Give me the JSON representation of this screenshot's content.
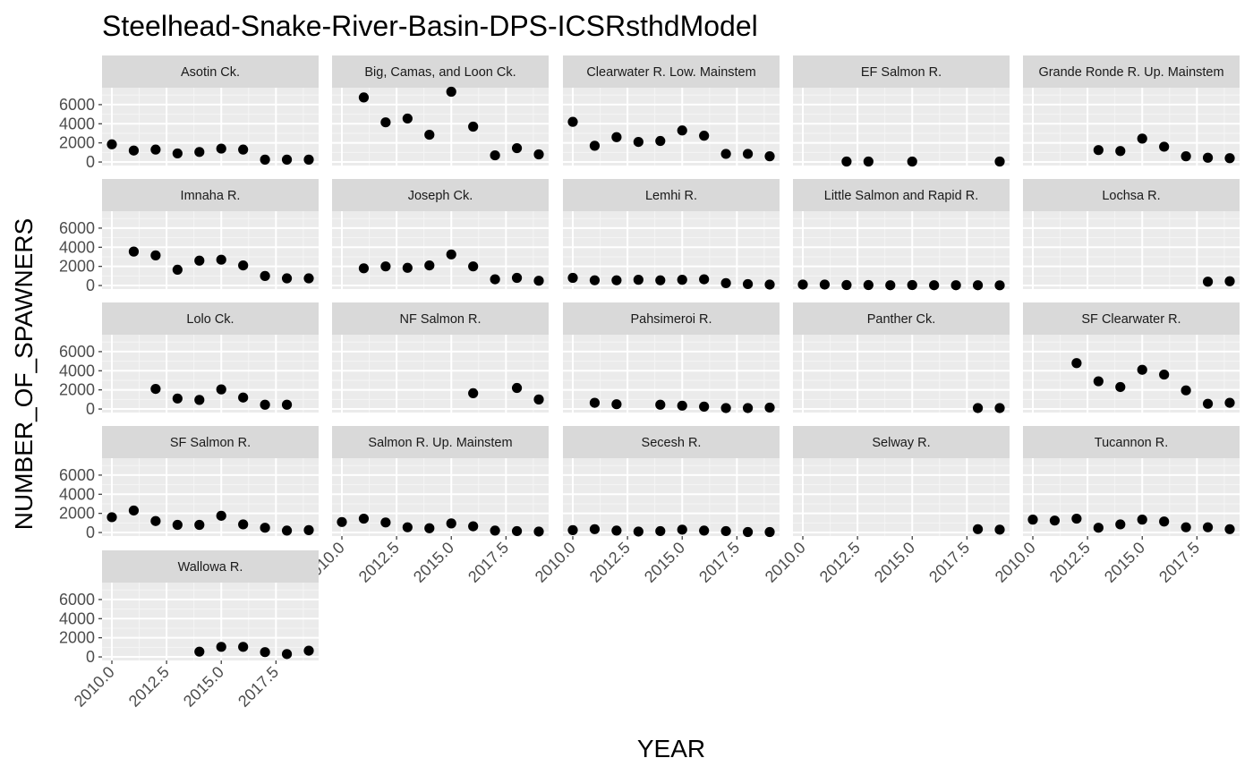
{
  "chart_data": {
    "type": "scatter",
    "title": "Steelhead-Snake-River-Basin-DPS-ICSRsthdModel",
    "xlabel": "YEAR",
    "ylabel": "NUMBER_OF_SPAWNERS",
    "xlim": [
      2009.55,
      2019.45
    ],
    "ylim": [
      -370,
      7770
    ],
    "x_ticks": [
      2010.0,
      2012.5,
      2015.0,
      2017.5
    ],
    "x_tick_labels": [
      "2010.0",
      "2012.5",
      "2015.0",
      "2017.5"
    ],
    "y_ticks": [
      0,
      2000,
      4000,
      6000
    ],
    "y_tick_labels": [
      "0",
      "2000",
      "4000",
      "6000"
    ],
    "grid": true,
    "point_color": "#000000",
    "panel_background": "#ebebeb",
    "strip_background": "#d9d9d9",
    "panels": [
      {
        "name": "Asotin Ck.",
        "x": [
          2010,
          2011,
          2012,
          2013,
          2014,
          2015,
          2016,
          2017,
          2018,
          2019
        ],
        "y": [
          1850,
          1200,
          1300,
          900,
          1050,
          1400,
          1300,
          250,
          250,
          250
        ]
      },
      {
        "name": "Big, Camas, and Loon Ck.",
        "x": [
          2011,
          2012,
          2013,
          2014,
          2015,
          2016,
          2017,
          2018,
          2019
        ],
        "y": [
          6750,
          4150,
          4550,
          2850,
          7350,
          3700,
          700,
          1450,
          800
        ]
      },
      {
        "name": "Clearwater R. Low. Mainstem",
        "x": [
          2010,
          2011,
          2012,
          2013,
          2014,
          2015,
          2016,
          2017,
          2018,
          2019
        ],
        "y": [
          4200,
          1700,
          2600,
          2100,
          2200,
          3300,
          2750,
          850,
          850,
          600
        ]
      },
      {
        "name": "EF Salmon R.",
        "x": [
          2012,
          2013,
          2015,
          2019
        ],
        "y": [
          50,
          50,
          50,
          50
        ]
      },
      {
        "name": "Grande Ronde R. Up. Mainstem",
        "x": [
          2013,
          2014,
          2015,
          2016,
          2017,
          2018,
          2019
        ],
        "y": [
          1250,
          1150,
          2450,
          1600,
          600,
          450,
          400
        ]
      },
      {
        "name": "Imnaha R.",
        "x": [
          2011,
          2012,
          2013,
          2014,
          2015,
          2016,
          2017,
          2018,
          2019
        ],
        "y": [
          3550,
          3150,
          1650,
          2600,
          2700,
          2100,
          1000,
          750,
          750
        ]
      },
      {
        "name": "Joseph Ck.",
        "x": [
          2011,
          2012,
          2013,
          2014,
          2015,
          2016,
          2017,
          2018,
          2019
        ],
        "y": [
          1800,
          2000,
          1850,
          2100,
          3250,
          2000,
          650,
          800,
          500
        ]
      },
      {
        "name": "Lemhi R.",
        "x": [
          2010,
          2011,
          2012,
          2013,
          2014,
          2015,
          2016,
          2017,
          2018,
          2019
        ],
        "y": [
          800,
          550,
          550,
          600,
          550,
          600,
          650,
          250,
          150,
          100
        ]
      },
      {
        "name": "Little Salmon and Rapid R.",
        "x": [
          2010,
          2011,
          2012,
          2013,
          2014,
          2015,
          2016,
          2017,
          2018,
          2019
        ],
        "y": [
          100,
          100,
          50,
          50,
          30,
          50,
          30,
          30,
          30,
          20
        ]
      },
      {
        "name": "Lochsa R.",
        "x": [
          2018,
          2019
        ],
        "y": [
          400,
          450
        ]
      },
      {
        "name": "Lolo Ck.",
        "x": [
          2012,
          2013,
          2014,
          2015,
          2016,
          2017,
          2018
        ],
        "y": [
          2100,
          1100,
          950,
          2050,
          1200,
          450,
          450
        ]
      },
      {
        "name": "NF Salmon R.",
        "x": [
          2016,
          2018,
          2019
        ],
        "y": [
          1650,
          2200,
          1000
        ]
      },
      {
        "name": "Pahsimeroi R.",
        "x": [
          2011,
          2012,
          2014,
          2015,
          2016,
          2017,
          2018,
          2019
        ],
        "y": [
          650,
          500,
          450,
          350,
          250,
          100,
          100,
          150
        ]
      },
      {
        "name": "Panther Ck.",
        "x": [
          2018,
          2019
        ],
        "y": [
          100,
          100
        ]
      },
      {
        "name": "SF Clearwater R.",
        "x": [
          2012,
          2013,
          2014,
          2015,
          2016,
          2017,
          2018,
          2019
        ],
        "y": [
          4800,
          2900,
          2300,
          4100,
          3600,
          1950,
          550,
          650
        ]
      },
      {
        "name": "SF Salmon R.",
        "x": [
          2010,
          2011,
          2012,
          2013,
          2014,
          2015,
          2016,
          2017,
          2018,
          2019
        ],
        "y": [
          1600,
          2300,
          1200,
          800,
          800,
          1750,
          850,
          500,
          200,
          250
        ]
      },
      {
        "name": "Salmon R. Up. Mainstem",
        "x": [
          2010,
          2011,
          2012,
          2013,
          2014,
          2015,
          2016,
          2017,
          2018,
          2019
        ],
        "y": [
          1100,
          1450,
          1050,
          550,
          450,
          950,
          650,
          200,
          150,
          100
        ]
      },
      {
        "name": "Secesh R.",
        "x": [
          2010,
          2011,
          2012,
          2013,
          2014,
          2015,
          2016,
          2017,
          2018,
          2019
        ],
        "y": [
          250,
          350,
          200,
          100,
          150,
          300,
          200,
          150,
          50,
          50
        ]
      },
      {
        "name": "Selway R.",
        "x": [
          2018,
          2019
        ],
        "y": [
          350,
          300
        ]
      },
      {
        "name": "Tucannon R.",
        "x": [
          2010,
          2011,
          2012,
          2013,
          2014,
          2015,
          2016,
          2017,
          2018,
          2019
        ],
        "y": [
          1350,
          1250,
          1450,
          500,
          850,
          1350,
          1150,
          550,
          550,
          350
        ]
      },
      {
        "name": "Wallowa R.",
        "x": [
          2014,
          2015,
          2016,
          2017,
          2018,
          2019
        ],
        "y": [
          550,
          1050,
          1050,
          500,
          300,
          650
        ]
      }
    ]
  }
}
